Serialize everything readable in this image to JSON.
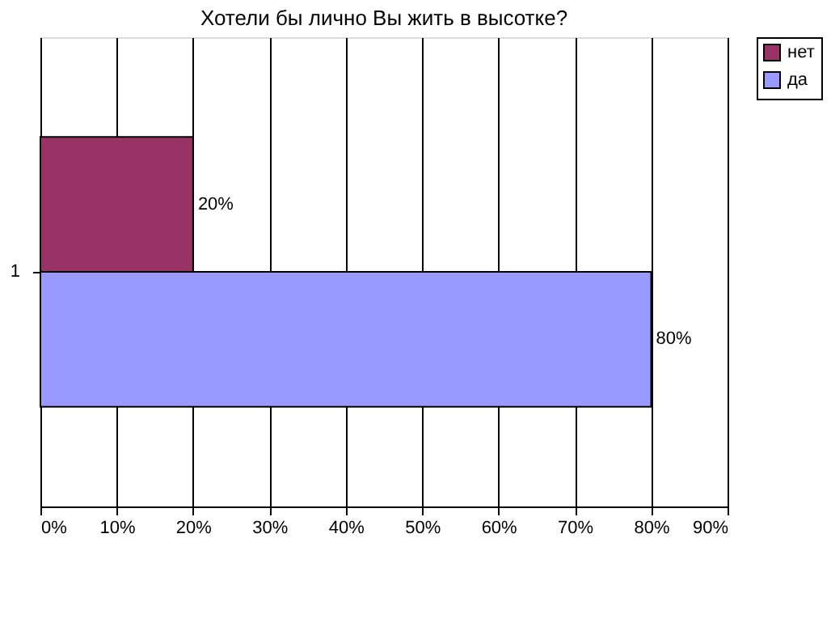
{
  "chart_data": {
    "type": "bar",
    "orientation": "horizontal",
    "title": "Хотели бы лично Вы жить в высотке?",
    "categories": [
      "1"
    ],
    "series": [
      {
        "name": "нет",
        "color": "#993366",
        "values": [
          20
        ],
        "value_labels": [
          "20%"
        ]
      },
      {
        "name": "да",
        "color": "#9999ff",
        "values": [
          80
        ],
        "value_labels": [
          "80%"
        ]
      }
    ],
    "xlim": [
      0,
      90
    ],
    "xticks": [
      {
        "value": 0,
        "label": "0%"
      },
      {
        "value": 10,
        "label": "10%"
      },
      {
        "value": 20,
        "label": "20%"
      },
      {
        "value": 30,
        "label": "30%"
      },
      {
        "value": 40,
        "label": "40%"
      },
      {
        "value": 50,
        "label": "50%"
      },
      {
        "value": 60,
        "label": "60%"
      },
      {
        "value": 70,
        "label": "70%"
      },
      {
        "value": 80,
        "label": "80%"
      },
      {
        "value": 90,
        "label": "90%"
      }
    ],
    "grid": "x",
    "legend": "right"
  }
}
